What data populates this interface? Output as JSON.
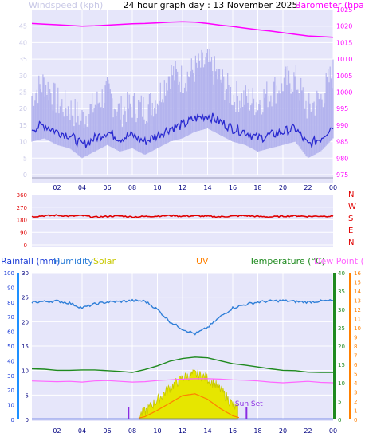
{
  "title": "24 hour graph day : 13 November 2025",
  "colors": {
    "windspeed_label": "#c8c8e6",
    "barometer": "#ff00ff",
    "direction": "#e00000",
    "rainfall": "#1a3bd6",
    "humidity": "#2f7fd8",
    "solar": "#c8c800",
    "uv": "#ff8000",
    "temperature": "#1f8a1f",
    "dewpoint": "#ff66ff",
    "sunset": "#8a2be2"
  },
  "x_tick_labels": [
    "02",
    "04",
    "06",
    "08",
    "10",
    "12",
    "14",
    "16",
    "18",
    "20",
    "22",
    "00"
  ],
  "chart_data": [
    {
      "type": "line",
      "name": "wind-barometer",
      "xlabel": "",
      "ylabel_left": "Windspeed (kph)",
      "ylabel_right": "Barometer (hpa)",
      "y_left_ticks": [
        0,
        5,
        10,
        15,
        20,
        25,
        30,
        35,
        40,
        45
      ],
      "y_left_range": [
        0,
        50
      ],
      "y_right_ticks": [
        975,
        980,
        985,
        990,
        995,
        1000,
        1005,
        1010,
        1015,
        1020,
        1025
      ],
      "y_right_range": [
        975,
        1025
      ],
      "x_hours": [
        0,
        1,
        2,
        3,
        4,
        5,
        6,
        7,
        8,
        9,
        10,
        11,
        12,
        13,
        14,
        15,
        16,
        17,
        18,
        19,
        20,
        21,
        22,
        23,
        24
      ],
      "series": [
        {
          "name": "Barometer (hpa)",
          "axis": "right",
          "values": [
            1020.8,
            1020.6,
            1020.4,
            1020.2,
            1020.0,
            1020.1,
            1020.3,
            1020.5,
            1020.7,
            1020.8,
            1021.0,
            1021.2,
            1021.3,
            1021.2,
            1020.8,
            1020.3,
            1019.9,
            1019.4,
            1018.9,
            1018.5,
            1018.0,
            1017.5,
            1017.0,
            1016.8,
            1016.6
          ]
        },
        {
          "name": "Windspeed avg",
          "axis": "left",
          "values": [
            14,
            15,
            13,
            12,
            9,
            11,
            13,
            11,
            12,
            10,
            12,
            14,
            15,
            17,
            18,
            16,
            14,
            13,
            11,
            12,
            13,
            14,
            9,
            11,
            15
          ]
        },
        {
          "name": "Wind gust",
          "axis": "left",
          "values": [
            24,
            28,
            22,
            20,
            17,
            21,
            25,
            19,
            21,
            20,
            23,
            31,
            29,
            32,
            34,
            29,
            24,
            23,
            22,
            25,
            28,
            29,
            20,
            23,
            31
          ]
        }
      ]
    },
    {
      "type": "scatter",
      "name": "wind-direction",
      "y_ticks_left": [
        0,
        90,
        180,
        270,
        360
      ],
      "y_range": [
        0,
        360
      ],
      "compass_labels": [
        "N",
        "W",
        "S",
        "E",
        "N"
      ],
      "x_hours": [
        0,
        1,
        2,
        3,
        4,
        5,
        6,
        7,
        8,
        9,
        10,
        11,
        12,
        13,
        14,
        15,
        16,
        17,
        18,
        19,
        20,
        21,
        22,
        23,
        24
      ],
      "values": [
        202,
        208,
        212,
        205,
        210,
        198,
        204,
        207,
        200,
        203,
        206,
        210,
        205,
        208,
        204,
        201,
        206,
        209,
        203,
        200,
        205,
        208,
        203,
        206,
        205
      ]
    },
    {
      "type": "line",
      "name": "rain-humidity-solar-uv-temperature",
      "legend": [
        "Rainfall (mm)",
        "Humidity",
        "Solar",
        "UV",
        "Temperature (°C)",
        "Dew Point (°C)"
      ],
      "rain_ticks": [
        0,
        10,
        20,
        30,
        40,
        50,
        60,
        70,
        80,
        90,
        100
      ],
      "humidity_ticks": [
        0,
        5,
        10,
        15,
        20,
        25,
        30
      ],
      "temperature_ticks": [
        0,
        5,
        10,
        15,
        20,
        25,
        30,
        35,
        40
      ],
      "uv_ticks": [
        0,
        1,
        2,
        3,
        4,
        5,
        6,
        7,
        8,
        9,
        10,
        11,
        12,
        13,
        14,
        15,
        16
      ],
      "y_range_humidity": [
        0,
        30
      ],
      "y_range_temperature": [
        0,
        40
      ],
      "y_range_uv": [
        0,
        16
      ],
      "x_hours": [
        0,
        1,
        2,
        3,
        4,
        5,
        6,
        7,
        8,
        9,
        10,
        11,
        12,
        13,
        14,
        15,
        16,
        17,
        18,
        19,
        20,
        21,
        22,
        23,
        24
      ],
      "series": [
        {
          "name": "Humidity",
          "values": [
            24.0,
            24.1,
            24.2,
            23.8,
            22.8,
            23.6,
            24.0,
            24.1,
            24.3,
            24.2,
            22.5,
            20.0,
            18.5,
            17.5,
            18.8,
            21.0,
            22.8,
            23.5,
            24.0,
            24.2,
            24.3,
            24.1,
            24.0,
            24.2,
            24.3
          ]
        },
        {
          "name": "Temperature (°C)",
          "values": [
            13.8,
            13.7,
            13.4,
            13.4,
            13.5,
            13.5,
            13.3,
            13.1,
            12.8,
            13.6,
            14.6,
            15.9,
            16.6,
            17.0,
            16.8,
            16.0,
            15.2,
            14.8,
            14.3,
            13.8,
            13.4,
            13.3,
            12.9,
            12.8,
            12.8
          ]
        },
        {
          "name": "Dew Point (°C)",
          "values": [
            10.5,
            10.4,
            10.3,
            10.4,
            10.2,
            10.5,
            10.6,
            10.4,
            10.2,
            10.3,
            10.6,
            10.8,
            11.0,
            11.1,
            11.1,
            11.0,
            10.8,
            10.7,
            10.5,
            10.2,
            10.0,
            10.2,
            10.4,
            10.1,
            10.0
          ]
        },
        {
          "name": "Solar",
          "values": [
            0,
            0,
            0,
            0,
            0,
            0,
            0,
            0,
            0,
            1.5,
            4.0,
            6.5,
            8.5,
            9.3,
            8.4,
            6.2,
            3.0,
            0.4,
            0,
            0,
            0,
            0,
            0,
            0,
            0
          ]
        },
        {
          "name": "UV",
          "values": [
            0,
            0,
            0,
            0,
            0,
            0,
            0,
            0,
            0,
            0.3,
            1.0,
            1.8,
            2.6,
            2.8,
            2.2,
            1.2,
            0.4,
            0,
            0,
            0,
            0,
            0,
            0,
            0,
            0
          ]
        },
        {
          "name": "Rainfall (mm)",
          "values": [
            0,
            0,
            0,
            0,
            0,
            0,
            0,
            0,
            0,
            0,
            0,
            0,
            0,
            0,
            0,
            0,
            0,
            0,
            0,
            0,
            0,
            0,
            0,
            0,
            0
          ]
        }
      ],
      "sunrise_hour": 7.7,
      "sunset_hour": 17.1,
      "annotation": "Sun Set"
    }
  ]
}
